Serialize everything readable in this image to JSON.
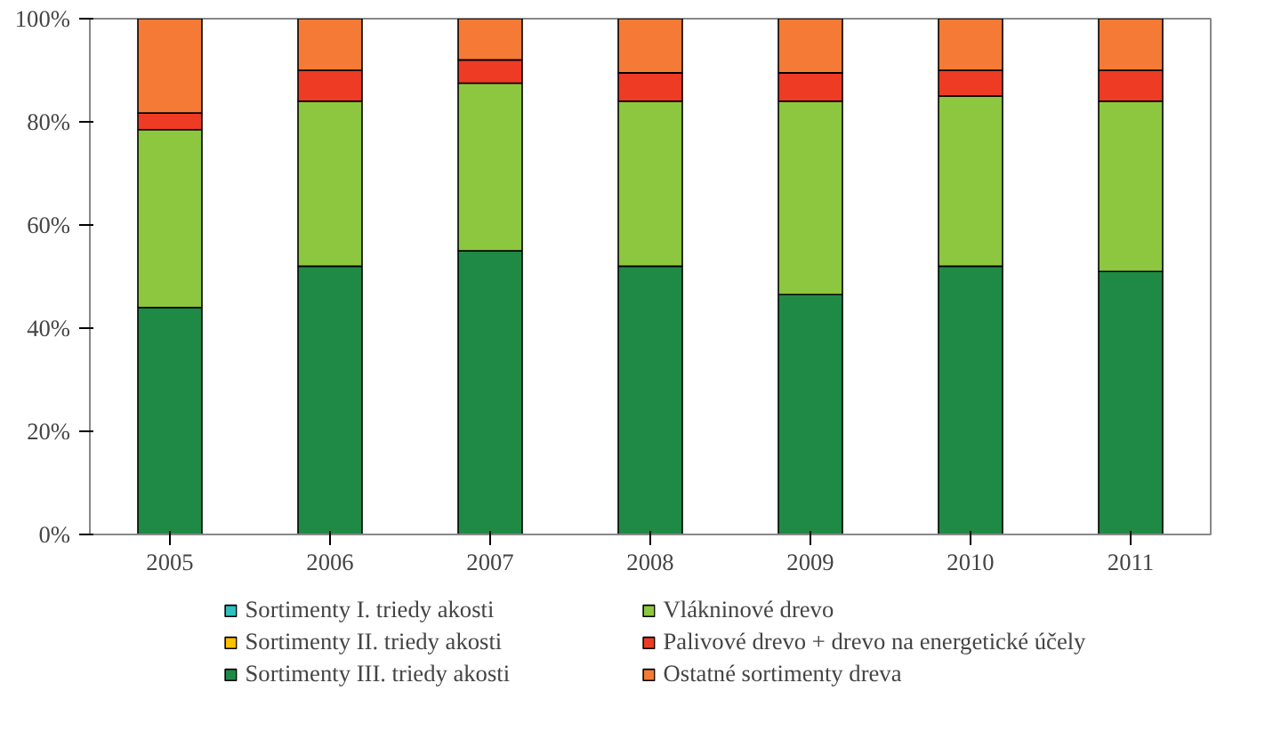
{
  "chart_data": {
    "type": "bar",
    "stacked": true,
    "categories": [
      "2005",
      "2006",
      "2007",
      "2008",
      "2009",
      "2010",
      "2011"
    ],
    "series": [
      {
        "name": "Sortimenty I. triedy akosti",
        "color": "#2fbfbf",
        "values": [
          0,
          0,
          0,
          0,
          0,
          0,
          0
        ]
      },
      {
        "name": "Sortimenty II. triedy akosti",
        "color": "#ffc000",
        "values": [
          0,
          0,
          0,
          0,
          0,
          0,
          0
        ]
      },
      {
        "name": "Sortimenty III. triedy akosti",
        "color": "#1f8a45",
        "values": [
          44,
          52,
          55,
          52,
          46.5,
          52,
          51
        ]
      },
      {
        "name": "Vlákninové drevo",
        "color": "#8dc63f",
        "values": [
          34.5,
          32,
          32.5,
          32,
          37.5,
          33,
          33
        ]
      },
      {
        "name": "Palivové drevo + drevo na energetické účely",
        "color": "#ee3b24",
        "values": [
          3.2,
          6,
          4.5,
          5.5,
          5.5,
          5,
          6
        ]
      },
      {
        "name": "Ostatné sortimenty dreva",
        "color": "#f47a35",
        "values": [
          18.3,
          10,
          8,
          10.5,
          10.5,
          10,
          10
        ]
      }
    ],
    "ylim": [
      0,
      100
    ],
    "yticks": [
      {
        "value": 0,
        "label": "0%"
      },
      {
        "value": 20,
        "label": "20%"
      },
      {
        "value": 40,
        "label": "40%"
      },
      {
        "value": 60,
        "label": "60%"
      },
      {
        "value": 80,
        "label": "80%"
      },
      {
        "value": 100,
        "label": "100%"
      }
    ],
    "grid": false,
    "legend": "bottom"
  }
}
